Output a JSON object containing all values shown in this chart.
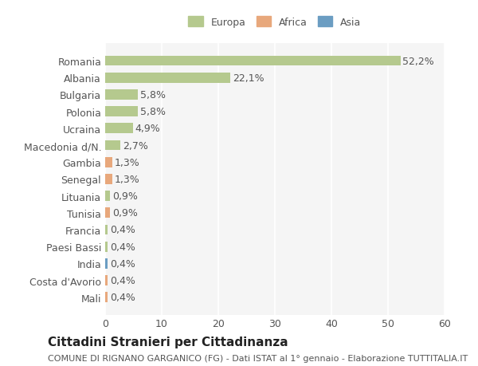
{
  "categories": [
    "Romania",
    "Albania",
    "Bulgaria",
    "Polonia",
    "Ucraina",
    "Macedonia d/N.",
    "Gambia",
    "Senegal",
    "Lituania",
    "Tunisia",
    "Francia",
    "Paesi Bassi",
    "India",
    "Costa d'Avorio",
    "Mali"
  ],
  "values": [
    52.2,
    22.1,
    5.8,
    5.8,
    4.9,
    2.7,
    1.3,
    1.3,
    0.9,
    0.9,
    0.4,
    0.4,
    0.4,
    0.4,
    0.4
  ],
  "labels": [
    "52,2%",
    "22,1%",
    "5,8%",
    "5,8%",
    "4,9%",
    "2,7%",
    "1,3%",
    "1,3%",
    "0,9%",
    "0,9%",
    "0,4%",
    "0,4%",
    "0,4%",
    "0,4%",
    "0,4%"
  ],
  "colors": [
    "#b5c98e",
    "#b5c98e",
    "#b5c98e",
    "#b5c98e",
    "#b5c98e",
    "#b5c98e",
    "#e8a87c",
    "#e8a87c",
    "#b5c98e",
    "#e8a87c",
    "#b5c98e",
    "#b5c98e",
    "#6b9dc2",
    "#e8a87c",
    "#e8a87c"
  ],
  "legend": [
    {
      "label": "Europa",
      "color": "#b5c98e"
    },
    {
      "label": "Africa",
      "color": "#e8a87c"
    },
    {
      "label": "Asia",
      "color": "#6b9dc2"
    }
  ],
  "xlim": [
    0,
    60
  ],
  "xticks": [
    0,
    10,
    20,
    30,
    40,
    50,
    60
  ],
  "title": "Cittadini Stranieri per Cittadinanza",
  "subtitle": "COMUNE DI RIGNANO GARGANICO (FG) - Dati ISTAT al 1° gennaio - Elaborazione TUTTITALIA.IT",
  "background_color": "#ffffff",
  "plot_bg_color": "#f5f5f5",
  "bar_height": 0.6,
  "grid_color": "#ffffff",
  "label_fontsize": 9,
  "tick_fontsize": 9,
  "title_fontsize": 11,
  "subtitle_fontsize": 8
}
